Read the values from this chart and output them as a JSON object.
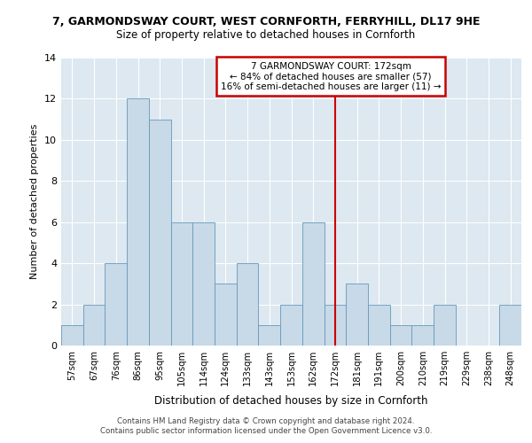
{
  "title_line1": "7, GARMONDSWAY COURT, WEST CORNFORTH, FERRYHILL, DL17 9HE",
  "title_line2": "Size of property relative to detached houses in Cornforth",
  "xlabel": "Distribution of detached houses by size in Cornforth",
  "ylabel": "Number of detached properties",
  "categories": [
    "57sqm",
    "67sqm",
    "76sqm",
    "86sqm",
    "95sqm",
    "105sqm",
    "114sqm",
    "124sqm",
    "133sqm",
    "143sqm",
    "153sqm",
    "162sqm",
    "172sqm",
    "181sqm",
    "191sqm",
    "200sqm",
    "210sqm",
    "219sqm",
    "229sqm",
    "238sqm",
    "248sqm"
  ],
  "values": [
    1,
    2,
    4,
    12,
    11,
    6,
    6,
    3,
    4,
    1,
    2,
    6,
    2,
    3,
    2,
    1,
    1,
    2,
    0,
    0,
    2
  ],
  "bar_color": "#c8d9e8",
  "bar_edge_color": "#6699bb",
  "marker_index": 12,
  "annotation_title": "7 GARMONDSWAY COURT: 172sqm",
  "annotation_line1": "← 84% of detached houses are smaller (57)",
  "annotation_line2": "16% of semi-detached houses are larger (11) →",
  "marker_color": "#cc0000",
  "annotation_box_color": "#cc0000",
  "ylim": [
    0,
    14
  ],
  "yticks": [
    0,
    2,
    4,
    6,
    8,
    10,
    12,
    14
  ],
  "background_color": "#dde8f0",
  "footer_line1": "Contains HM Land Registry data © Crown copyright and database right 2024.",
  "footer_line2": "Contains public sector information licensed under the Open Government Licence v3.0."
}
